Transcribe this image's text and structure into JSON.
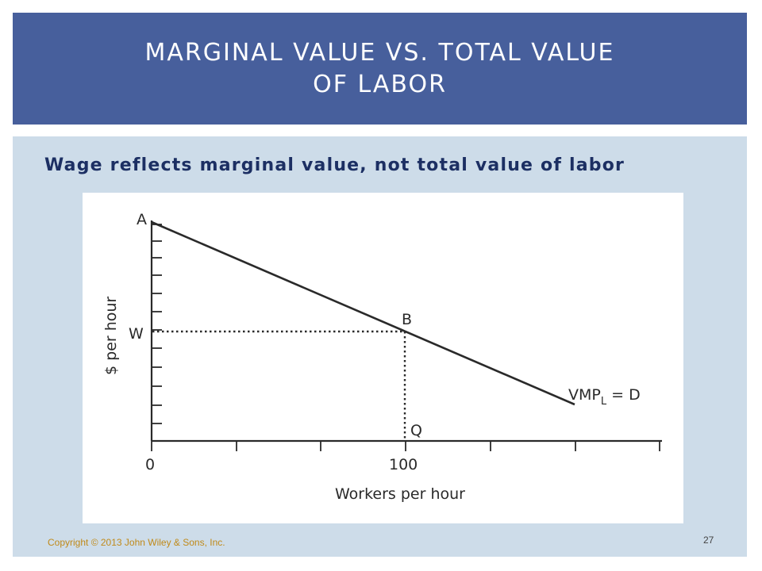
{
  "slide": {
    "title_line1": "MARGINAL VALUE VS. TOTAL VALUE",
    "title_line2": "OF LABOR",
    "subtitle": "Wage reflects marginal value, not total value of labor",
    "copyright": "Copyright © 2013 John Wiley & Sons, Inc.",
    "page_number": "27"
  },
  "colors": {
    "title_bar": "#475f9c",
    "panel": "#cddce9",
    "subtitle_text": "#1c2f63",
    "copyright_text": "#c08a1a"
  },
  "figure": {
    "ylabel": "$ per hour",
    "xlabel": "Workers per hour",
    "x_ticks": [
      "0",
      "100"
    ],
    "point_labels": {
      "a": "A",
      "b": "B",
      "w": "W",
      "q": "Q"
    },
    "curve_label_main": "VMP",
    "curve_label_sub": "L",
    "curve_label_rest": " = D"
  }
}
